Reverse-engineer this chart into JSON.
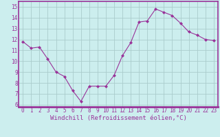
{
  "x": [
    0,
    1,
    2,
    3,
    4,
    5,
    6,
    7,
    8,
    9,
    10,
    11,
    12,
    13,
    14,
    15,
    16,
    17,
    18,
    19,
    20,
    21,
    22,
    23
  ],
  "y": [
    11.8,
    11.2,
    11.3,
    10.2,
    9.0,
    8.6,
    7.3,
    6.3,
    7.7,
    7.7,
    7.7,
    8.7,
    10.5,
    11.7,
    13.6,
    13.7,
    14.8,
    14.5,
    14.2,
    13.5,
    12.7,
    12.4,
    12.0,
    11.9
  ],
  "line_color": "#993399",
  "marker": "D",
  "marker_size": 2,
  "bg_color": "#cceeee",
  "grid_color": "#aacccc",
  "xlabel": "Windchill (Refroidissement éolien,°C)",
  "xlabel_color": "#993399",
  "ylabel_ticks": [
    6,
    7,
    8,
    9,
    10,
    11,
    12,
    13,
    14,
    15
  ],
  "xtick_labels": [
    "0",
    "1",
    "2",
    "3",
    "4",
    "5",
    "6",
    "7",
    "8",
    "9",
    "10",
    "11",
    "12",
    "13",
    "14",
    "15",
    "16",
    "17",
    "18",
    "19",
    "20",
    "21",
    "22",
    "23"
  ],
  "ylim": [
    5.8,
    15.5
  ],
  "xlim": [
    -0.5,
    23.5
  ],
  "tick_color": "#993399",
  "tick_fontsize": 5.5,
  "xlabel_fontsize": 6.5,
  "border_color": "#993399",
  "axis_linewidth": 1.2,
  "separator_color": "#993399"
}
